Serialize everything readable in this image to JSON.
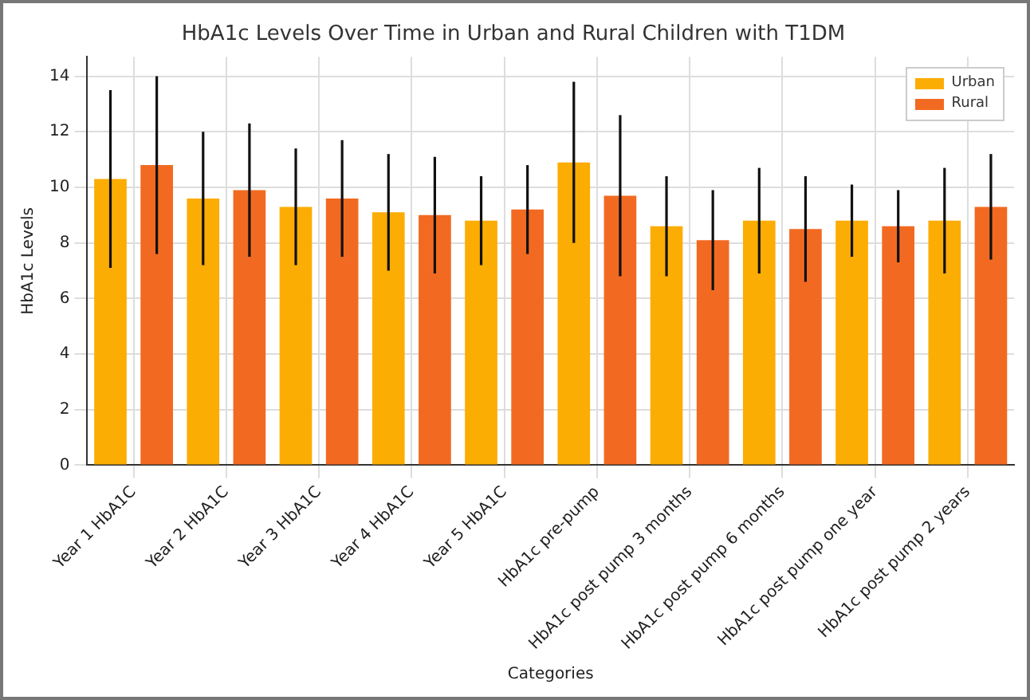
{
  "chart_data": {
    "type": "bar",
    "title": "HbA1c Levels Over Time in Urban and Rural Children with T1DM",
    "xlabel": "Categories",
    "ylabel": "HbA1c Levels",
    "categories": [
      "Year 1 HbA1C",
      "Year 2 HbA1C",
      "Year 3 HbA1C",
      "Year 4 HbA1C",
      "Year 5 HbA1C",
      "HbA1c pre-pump",
      "HbA1c post pump 3 months",
      "HbA1c post pump 6 months",
      "HbA1c post pump one year",
      "HbA1c post pump 2 years"
    ],
    "series": [
      {
        "name": "Urban",
        "color": "#fcad03",
        "values": [
          10.3,
          9.6,
          9.3,
          9.1,
          8.8,
          10.9,
          8.6,
          8.8,
          8.8,
          8.8
        ],
        "errors": [
          [
            7.1,
            13.5
          ],
          [
            7.2,
            12.0
          ],
          [
            7.2,
            11.4
          ],
          [
            7.0,
            11.2
          ],
          [
            7.2,
            10.4
          ],
          [
            8.0,
            13.8
          ],
          [
            6.8,
            10.4
          ],
          [
            6.9,
            10.7
          ],
          [
            7.5,
            10.1
          ],
          [
            6.9,
            10.7
          ]
        ]
      },
      {
        "name": "Rural",
        "color": "#f26a21",
        "values": [
          10.8,
          9.9,
          9.6,
          9.0,
          9.2,
          9.7,
          8.1,
          8.5,
          8.6,
          9.3
        ],
        "errors": [
          [
            7.6,
            14.0
          ],
          [
            7.5,
            12.3
          ],
          [
            7.5,
            11.7
          ],
          [
            6.9,
            11.1
          ],
          [
            7.6,
            10.8
          ],
          [
            6.8,
            12.6
          ],
          [
            6.3,
            9.9
          ],
          [
            6.6,
            10.4
          ],
          [
            7.3,
            9.9
          ],
          [
            7.4,
            11.2
          ]
        ]
      }
    ],
    "ylim": [
      0,
      14.7
    ],
    "yticks": [
      0,
      2,
      4,
      6,
      8,
      10,
      12,
      14
    ],
    "grid": true,
    "legend": "top right"
  }
}
